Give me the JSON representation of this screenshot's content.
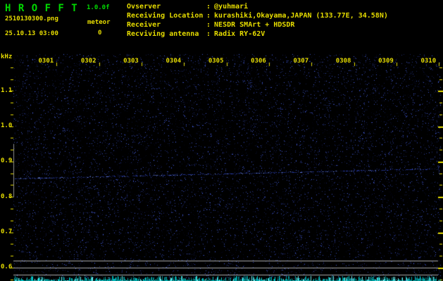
{
  "window": {
    "app_title": "H R O F F T",
    "version": "1.0.0f",
    "filename": "2510130300.png",
    "timestamp": "25.10.13 03:00",
    "meteor_label": "meteor",
    "meteor_count": "0"
  },
  "info": {
    "separator": ":",
    "rows": [
      {
        "label": "Ovserver",
        "value": "@yuhmari"
      },
      {
        "label": "Receiving Location",
        "value": "kurashiki,Okayama,JAPAN (133.77E, 34.58N)"
      },
      {
        "label": "Receiver",
        "value": "NESDR SMArt + HDSDR"
      },
      {
        "label": "Recviving antenna",
        "value": "Radix RY-62V"
      }
    ]
  },
  "spectrogram": {
    "freq_axis": {
      "unit": "kHz",
      "labels": [
        "1.1",
        "1.0",
        "0.9",
        "0.8",
        "0.7",
        "0.6"
      ],
      "top_khz": 1.1,
      "bottom_khz": 0.6
    },
    "time_axis": {
      "labels": [
        "0301",
        "0302",
        "0303",
        "0304",
        "0305",
        "0306",
        "0307",
        "0308",
        "0309",
        "0310"
      ]
    },
    "carrier_line_khz": {
      "start": 0.852,
      "end": 0.88
    },
    "marker_bar_khz": {
      "from": 0.95,
      "to": 0.8
    },
    "reference_lines_khz": [
      0.62,
      0.6,
      0.58
    ]
  },
  "colors": {
    "background": "#000000",
    "text_yellow": "#e6dc00",
    "text_green": "#00d800",
    "noise_blue": "#2233cc",
    "carrier_blue": "#3c5aff",
    "reference_gray": "#a8a8a8",
    "marker_gray": "#909090",
    "signal_cyan": "#00dcdc"
  }
}
